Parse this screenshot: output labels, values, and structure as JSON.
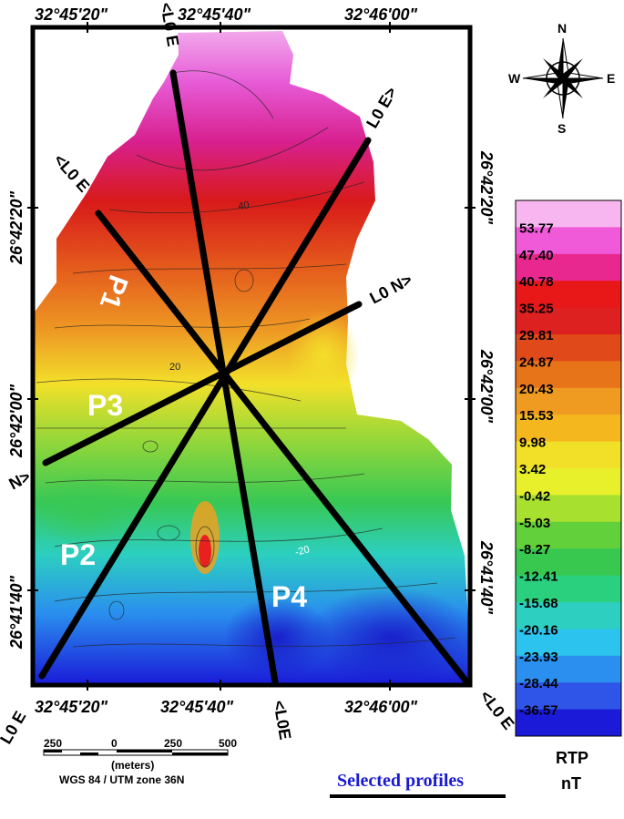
{
  "map": {
    "top_longitudes": [
      "32°45'20\"",
      "32°45'40\"",
      "32°46'00\""
    ],
    "bottom_longitudes": [
      "32°45'20\"",
      "32°45'40\"",
      "32°46'00\""
    ],
    "left_latitudes": [
      "26°42'20\"",
      "26°42'00\"",
      "26°41'40\""
    ],
    "right_latitudes": [
      "26°42'20\"",
      "26°42'00\"",
      "26°41'40\""
    ],
    "profile_labels": [
      "P1",
      "P2",
      "P3",
      "P4"
    ],
    "line_end_labels": [
      "<L0 E",
      "L0 E>",
      "<L0 E",
      "L0 N>",
      "N>",
      "L0 E",
      "<L0E",
      "<L0 E"
    ],
    "contour_labels": [
      "40",
      "20",
      "-20"
    ]
  },
  "compass": {
    "n": "N",
    "s": "S",
    "e": "E",
    "w": "W"
  },
  "scale_bar": {
    "ticks": [
      "250",
      "0",
      "250",
      "500"
    ],
    "unit": "(meters)",
    "projection": "WGS 84 / UTM zone 36N"
  },
  "title": "Selected profiles",
  "legend": {
    "values": [
      "53.77",
      "47.40",
      "40.78",
      "35.25",
      "29.81",
      "24.87",
      "20.43",
      "15.53",
      "9.98",
      "3.42",
      "-0.42",
      "-5.03",
      "-8.27",
      "-12.41",
      "-15.68",
      "-20.16",
      "-23.93",
      "-28.44",
      "-36.57"
    ],
    "colors": [
      "#f7b6ef",
      "#f05ad9",
      "#e8288e",
      "#e81818",
      "#dd2020",
      "#e04a1a",
      "#e8741a",
      "#ef9a20",
      "#f4b81e",
      "#f1df28",
      "#e7f02a",
      "#a8e030",
      "#62d03a",
      "#38c850",
      "#2ad07e",
      "#2ccfc0",
      "#2cc3ee",
      "#2a8fee",
      "#2f55e8",
      "#1a1ad8"
    ],
    "title_line1": "RTP",
    "title_line2": "nT"
  }
}
